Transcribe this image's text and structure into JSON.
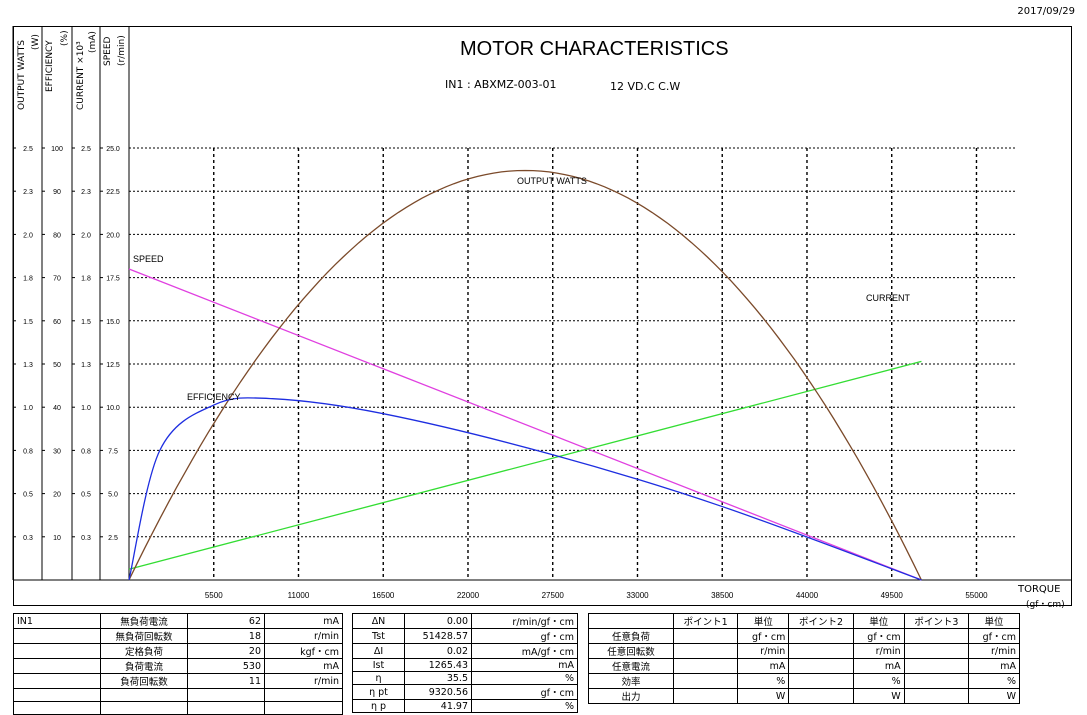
{
  "date": "2017/09/29",
  "title": "MOTOR CHARACTERISTICS",
  "model": "IN1 : ABXMZ-003-01",
  "voltage": "12 VD.C    C.W",
  "axis_headers": {
    "watts": "OUTPUT WATTS",
    "watts_unit": "(W)",
    "eff": "EFFICIENCY",
    "eff_unit": "(%)",
    "cur": "CURRENT ×10³",
    "cur_unit": "(mA)",
    "spd": "SPEED",
    "spd_unit": "(r/min)"
  },
  "torque_label": "TORQUE",
  "torque_unit": "(gf・cm)",
  "chart_data": {
    "type": "line",
    "title": "MOTOR CHARACTERISTICS",
    "xlabel": "TORQUE (gf・cm)",
    "xlim": [
      0,
      57500
    ],
    "x_ticks": [
      "5500",
      "11000",
      "16500",
      "22000",
      "27500",
      "33000",
      "38500",
      "44000",
      "49500",
      "55000"
    ],
    "y_axes": [
      {
        "name": "OUTPUT WATTS (W)",
        "ticks": [
          "2.5",
          "2.3",
          "2.0",
          "1.8",
          "1.5",
          "1.3",
          "1.0",
          "0.8",
          "0.5",
          "0.3"
        ],
        "range": [
          0,
          2.5
        ]
      },
      {
        "name": "EFFICIENCY (%)",
        "ticks": [
          "100",
          "90",
          "80",
          "70",
          "60",
          "50",
          "40",
          "30",
          "20",
          "10"
        ],
        "range": [
          0,
          100
        ]
      },
      {
        "name": "CURRENT ×10³ (mA)",
        "ticks": [
          "2.5",
          "2.3",
          "2.0",
          "1.8",
          "1.5",
          "1.3",
          "1.0",
          "0.8",
          "0.5",
          "0.3"
        ],
        "range": [
          0,
          2.5
        ]
      },
      {
        "name": "SPEED (r/min)",
        "ticks": [
          "25.0",
          "22.5",
          "20.0",
          "17.5",
          "15.0",
          "12.5",
          "10.0",
          "7.5",
          "5.0",
          "2.5"
        ],
        "range": [
          0,
          25
        ]
      }
    ],
    "grid": true,
    "series": [
      {
        "name": "SPEED",
        "color": "#e040e0",
        "axis": 3,
        "shape": "linear",
        "x": [
          0,
          51428.57
        ],
        "y": [
          18.0,
          0
        ]
      },
      {
        "name": "CURRENT",
        "color": "#33dd33",
        "axis": 2,
        "shape": "linear",
        "x": [
          0,
          51428.57
        ],
        "y": [
          0.062,
          1.265
        ]
      },
      {
        "name": "OUTPUT WATTS",
        "color": "#7b4a2a",
        "axis": 0,
        "shape": "parabola",
        "x": [
          0,
          25714,
          51428.57
        ],
        "y": [
          0,
          2.37,
          0
        ]
      },
      {
        "name": "EFFICIENCY",
        "color": "#1e2ee0",
        "axis": 1,
        "shape": "efficiency",
        "x": [
          0,
          2000,
          5500,
          9320.56,
          16500,
          27500,
          38500,
          51428.57
        ],
        "y": [
          0,
          30,
          40.5,
          41.97,
          38.5,
          29,
          17,
          0
        ]
      }
    ],
    "annotations": [
      "SPEED",
      "EFFICIENCY",
      "OUTPUT WATTS",
      "CURRENT"
    ]
  },
  "table_left": {
    "id": "IN1",
    "rows": [
      {
        "label": "無負荷電流",
        "value": "62",
        "unit": "mA"
      },
      {
        "label": "無負荷回転数",
        "value": "18",
        "unit": "r/min"
      },
      {
        "label": "定格負荷",
        "value": "20",
        "unit": "kgf・cm"
      },
      {
        "label": "負荷電流",
        "value": "530",
        "unit": "mA"
      },
      {
        "label": "負荷回転数",
        "value": "11",
        "unit": "r/min"
      }
    ]
  },
  "table_mid": {
    "rows": [
      {
        "label": "ΔN",
        "value": "0.00",
        "unit": "r/min/gf・cm"
      },
      {
        "label": "Tst",
        "value": "51428.57",
        "unit": "gf・cm"
      },
      {
        "label": "ΔI",
        "value": "0.02",
        "unit": "mA/gf・cm"
      },
      {
        "label": "Ist",
        "value": "1265.43",
        "unit": "mA"
      },
      {
        "label": "η",
        "value": "35.5",
        "unit": "%"
      },
      {
        "label": "η pt",
        "value": "9320.56",
        "unit": "gf・cm"
      },
      {
        "label": "η p",
        "value": "41.97",
        "unit": "%"
      }
    ]
  },
  "table_right": {
    "headers": [
      "ポイント1",
      "単位",
      "ポイント2",
      "単位",
      "ポイント3",
      "単位"
    ],
    "rows": [
      {
        "label": "任意負荷",
        "unit": "gf・cm"
      },
      {
        "label": "任意回転数",
        "unit": "r/min"
      },
      {
        "label": "任意電流",
        "unit": "mA"
      },
      {
        "label": "効率",
        "unit": "%"
      },
      {
        "label": "出力",
        "unit": "W"
      }
    ]
  }
}
